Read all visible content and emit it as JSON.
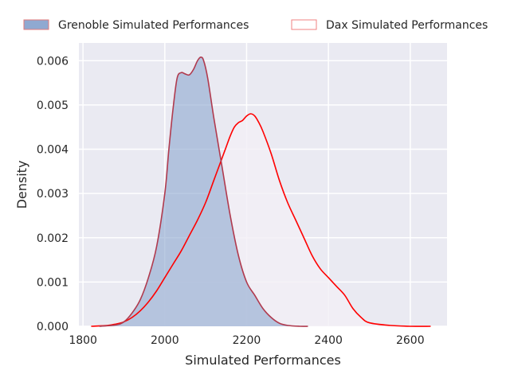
{
  "chart_data": {
    "type": "area",
    "xlabel": "Simulated Performances",
    "ylabel": "Density",
    "xlim": [
      1790,
      2690
    ],
    "ylim": [
      0,
      0.0064
    ],
    "grid": true,
    "legend_position": "top",
    "x_ticks": [
      {
        "value": 1800,
        "label": "1800"
      },
      {
        "value": 2000,
        "label": "2000"
      },
      {
        "value": 2200,
        "label": "2200"
      },
      {
        "value": 2400,
        "label": "2400"
      },
      {
        "value": 2600,
        "label": "2600"
      }
    ],
    "y_ticks": [
      {
        "value": 0,
        "label": "0.000"
      },
      {
        "value": 0.001,
        "label": "0.001"
      },
      {
        "value": 0.002,
        "label": "0.002"
      },
      {
        "value": 0.003,
        "label": "0.003"
      },
      {
        "value": 0.004,
        "label": "0.004"
      },
      {
        "value": 0.005,
        "label": "0.005"
      },
      {
        "value": 0.006,
        "label": "0.006"
      }
    ],
    "series": [
      {
        "name": "Grenoble Simulated Performances",
        "style": "filled",
        "fill_color": "#8fa9d1",
        "line_color": "#b03a4e",
        "points": [
          [
            1840,
            0.0
          ],
          [
            1880,
            3e-05
          ],
          [
            1900,
            0.0001
          ],
          [
            1920,
            0.0003
          ],
          [
            1940,
            0.0006
          ],
          [
            1960,
            0.0011
          ],
          [
            1980,
            0.0018
          ],
          [
            2000,
            0.003
          ],
          [
            2010,
            0.004
          ],
          [
            2020,
            0.0049
          ],
          [
            2030,
            0.0056
          ],
          [
            2040,
            0.00573
          ],
          [
            2050,
            0.0057
          ],
          [
            2060,
            0.00568
          ],
          [
            2070,
            0.0058
          ],
          [
            2080,
            0.006
          ],
          [
            2088,
            0.00608
          ],
          [
            2095,
            0.006
          ],
          [
            2105,
            0.0056
          ],
          [
            2120,
            0.0047
          ],
          [
            2140,
            0.0036
          ],
          [
            2160,
            0.0025
          ],
          [
            2180,
            0.0016
          ],
          [
            2200,
            0.001
          ],
          [
            2220,
            0.0007
          ],
          [
            2240,
            0.0004
          ],
          [
            2260,
            0.0002
          ],
          [
            2280,
            7e-05
          ],
          [
            2300,
            2e-05
          ],
          [
            2330,
            0.0
          ],
          [
            2350,
            0.0
          ]
        ]
      },
      {
        "name": "Dax Simulated Performances",
        "style": "line",
        "fill_color": "#f2eff5",
        "line_color": "#ff0000",
        "points": [
          [
            1820,
            0.0
          ],
          [
            1860,
            2e-05
          ],
          [
            1880,
            5e-05
          ],
          [
            1900,
            0.0001
          ],
          [
            1920,
            0.0002
          ],
          [
            1940,
            0.00035
          ],
          [
            1960,
            0.00055
          ],
          [
            1980,
            0.0008
          ],
          [
            2000,
            0.0011
          ],
          [
            2020,
            0.0014
          ],
          [
            2040,
            0.0017
          ],
          [
            2060,
            0.00205
          ],
          [
            2080,
            0.0024
          ],
          [
            2100,
            0.0028
          ],
          [
            2120,
            0.0033
          ],
          [
            2140,
            0.0038
          ],
          [
            2150,
            0.00405
          ],
          [
            2160,
            0.0043
          ],
          [
            2170,
            0.0045
          ],
          [
            2180,
            0.0046
          ],
          [
            2190,
            0.00465
          ],
          [
            2200,
            0.00475
          ],
          [
            2210,
            0.0048
          ],
          [
            2220,
            0.00475
          ],
          [
            2230,
            0.0046
          ],
          [
            2240,
            0.0044
          ],
          [
            2260,
            0.0039
          ],
          [
            2280,
            0.0033
          ],
          [
            2300,
            0.0028
          ],
          [
            2320,
            0.0024
          ],
          [
            2340,
            0.002
          ],
          [
            2360,
            0.0016
          ],
          [
            2380,
            0.0013
          ],
          [
            2400,
            0.0011
          ],
          [
            2420,
            0.0009
          ],
          [
            2440,
            0.0007
          ],
          [
            2460,
            0.0004
          ],
          [
            2480,
            0.0002
          ],
          [
            2500,
            8e-05
          ],
          [
            2550,
            2e-05
          ],
          [
            2600,
            0.0
          ],
          [
            2650,
            0.0
          ]
        ]
      }
    ]
  }
}
